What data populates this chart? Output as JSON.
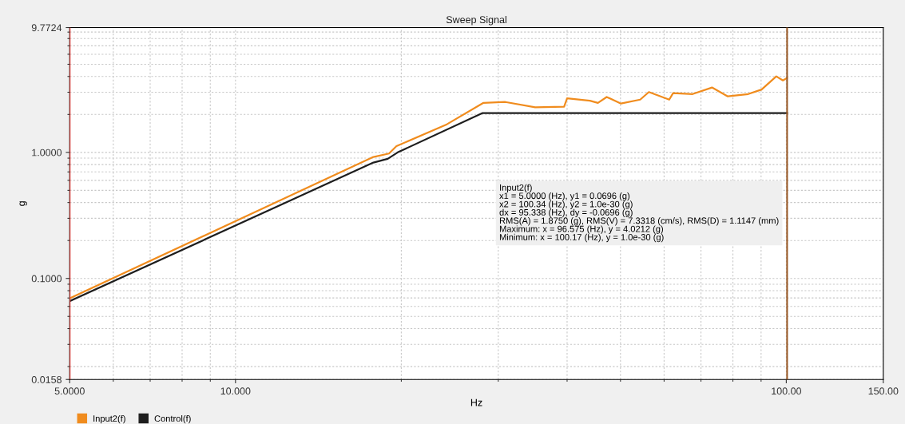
{
  "chart_data": {
    "type": "line",
    "title": "Sweep Signal",
    "xlabel": "Hz",
    "ylabel": "g",
    "log": "xy",
    "grid": true,
    "legend": "bottom",
    "marker": "none",
    "line_style": "solid",
    "xlim": [
      5,
      150
    ],
    "ylim": [
      0.0158,
      9.7724
    ],
    "xticks": [
      {
        "value": 5,
        "label": "5.0000"
      },
      {
        "value": 10,
        "label": "10.000"
      },
      {
        "value": 100,
        "label": "100.00"
      },
      {
        "value": 150,
        "label": "150.00"
      }
    ],
    "yticks": [
      {
        "value": 0.0158,
        "label": "0.0158"
      },
      {
        "value": 0.1,
        "label": "0.1000"
      },
      {
        "value": 1,
        "label": "1.0000"
      },
      {
        "value": 9.7724,
        "label": "9.7724"
      }
    ],
    "series": [
      {
        "name": "Input2(f)",
        "color": "#f08c1e",
        "x": [
          5,
          17.8,
          19.0,
          19.6,
          24.2,
          28.2,
          30.9,
          35.0,
          39.5,
          40.0,
          44.0,
          45.5,
          47.2,
          50.1,
          54.3,
          56.3,
          61.3,
          62.3,
          67.6,
          73.3,
          78.3,
          85.3,
          90.2,
          95.9,
          98.6,
          100.3
        ],
        "values": [
          0.0696,
          0.92,
          0.98,
          1.12,
          1.67,
          2.47,
          2.51,
          2.28,
          2.3,
          2.68,
          2.57,
          2.47,
          2.75,
          2.44,
          2.62,
          3.01,
          2.62,
          2.95,
          2.9,
          3.27,
          2.78,
          2.9,
          3.15,
          4.01,
          3.72,
          3.89
        ]
      },
      {
        "name": "Control(f)",
        "color": "#1e1e1e",
        "x": [
          5,
          17.8,
          18.9,
          19.7,
          28.1,
          100.34
        ],
        "values": [
          0.066,
          0.83,
          0.89,
          1.0,
          2.05,
          2.05
        ]
      }
    ],
    "ref_lines": [
      {
        "axis": "x",
        "value": 5,
        "color": "#e8413c"
      },
      {
        "axis": "x",
        "value": 100.34,
        "color": "#9a5a28"
      }
    ],
    "annotations": [
      "Input2(f)\nx1 = 5.0000 (Hz), y1 = 0.0696 (g)\nx2 = 100.34 (Hz), y2 = 1.0e-30 (g)\ndx = 95.338 (Hz), dy = -0.0696 (g)\nRMS(A) = 1.8750 (g), RMS(V) = 7.3318 (cm/s), RMS(D) = 1.1147 (mm)\nMaximum: x = 96.575 (Hz), y = 4.0212 (g)\nMinimum: x = 100.17 (Hz), y = 1.0e-30 (g)"
    ]
  }
}
